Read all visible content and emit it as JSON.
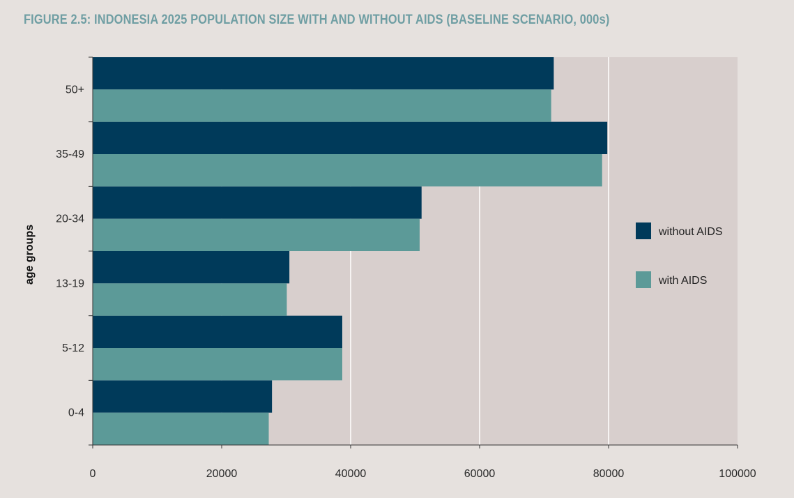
{
  "figure_title": "FIGURE 2.5: INDONESIA 2025 POPULATION SIZE WITH AND WITHOUT AIDS (BASELINE SCENARIO, 000s)",
  "colors": {
    "page_background": "#e6e1de",
    "plot_background": "#d8cfcd",
    "without_aids": "#003a5a",
    "with_aids": "#5c9a98",
    "gridline": "#ffffff",
    "title": "#6f9ea3"
  },
  "chart_data": {
    "type": "bar",
    "orientation": "horizontal",
    "title": "FIGURE 2.5: INDONESIA 2025 POPULATION SIZE WITH AND WITHOUT AIDS (BASELINE SCENARIO, 000s)",
    "ylabel": "age groups",
    "xlabel": "",
    "categories": [
      "0-4",
      "5-12",
      "13-19",
      "20-34",
      "35-49",
      "50+"
    ],
    "series": [
      {
        "name": "without AIDS",
        "values": [
          27800,
          38700,
          30500,
          51000,
          79800,
          71500
        ]
      },
      {
        "name": "with AIDS",
        "values": [
          27300,
          38700,
          30100,
          50700,
          79000,
          71100
        ]
      }
    ],
    "xlim": [
      0,
      100000
    ],
    "x_ticks": [
      "0",
      "20000",
      "40000",
      "60000",
      "80000",
      "100000"
    ],
    "grid": "vertical",
    "legend_position": "right"
  }
}
